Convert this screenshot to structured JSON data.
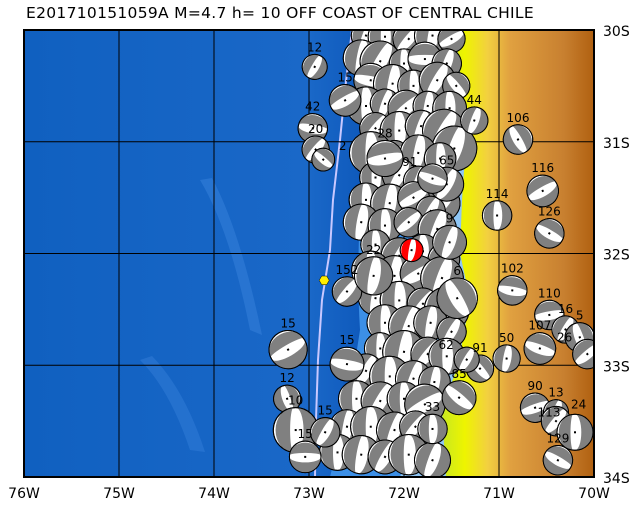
{
  "title": "E201710151059A M=4.7 h= 10 OFF COAST OF CENTRAL CHILE",
  "map": {
    "lon_range": [
      -76,
      -70
    ],
    "lat_range": [
      -34,
      -30
    ],
    "lon_ticks": [
      {
        "v": -76,
        "label": "76W"
      },
      {
        "v": -75,
        "label": "75W"
      },
      {
        "v": -74,
        "label": "74W"
      },
      {
        "v": -73,
        "label": "73W"
      },
      {
        "v": -72,
        "label": "72W"
      },
      {
        "v": -71,
        "label": "71W"
      },
      {
        "v": -70,
        "label": "70W"
      }
    ],
    "lat_ticks": [
      {
        "v": -30,
        "label": "30S"
      },
      {
        "v": -31,
        "label": "31S"
      },
      {
        "v": -32,
        "label": "32S"
      },
      {
        "v": -33,
        "label": "33S"
      },
      {
        "v": -34,
        "label": "34S"
      }
    ],
    "colors": {
      "ocean": "#1463c4",
      "shelf": "#3c8fe6",
      "coastal_water": "#8fc6f5",
      "lowland": "#e6f000",
      "land_mid": "#e0a040",
      "highland": "#b86a18",
      "trench": "#c8c8ff",
      "compression": "#808080",
      "target_event": "#ff0000",
      "epicenter_marker": "#ffee00"
    },
    "target_event": {
      "lon": -71.92,
      "lat": -31.97,
      "mag": 4.7,
      "depth": 10
    },
    "epicenter_marker": {
      "lon": -72.84,
      "lat": -32.24
    },
    "labeled_events": [
      [
        -72.94,
        -30.33,
        "12",
        4.8,
        30
      ],
      [
        -72.62,
        -30.63,
        "15",
        5.1,
        60
      ],
      [
        -72.96,
        -30.88,
        "42",
        5.0,
        100
      ],
      [
        -72.93,
        -31.07,
        "20",
        4.9,
        40
      ],
      [
        -72.85,
        -31.16,
        "2",
        4.7,
        130
      ],
      [
        -72.2,
        -31.15,
        "28",
        5.3,
        80
      ],
      [
        -71.26,
        -30.81,
        "44",
        4.9,
        20
      ],
      [
        -70.8,
        -30.98,
        "106",
        5.0,
        150
      ],
      [
        -70.54,
        -31.44,
        "116",
        5.1,
        60
      ],
      [
        -71.02,
        -31.66,
        "114",
        5.0,
        0
      ],
      [
        -70.47,
        -31.82,
        "126",
        5.0,
        120
      ],
      [
        -70.86,
        -32.33,
        "102",
        5.0,
        100
      ],
      [
        -70.47,
        -32.55,
        "110",
        5.0,
        80
      ],
      [
        -70.3,
        -32.68,
        "16",
        4.9,
        30
      ],
      [
        -70.15,
        -32.75,
        "5",
        5.0,
        160
      ],
      [
        -70.07,
        -32.9,
        "26",
        5.0,
        50
      ],
      [
        -70.57,
        -32.85,
        "107",
        5.1,
        110
      ],
      [
        -70.92,
        -32.94,
        "50",
        4.9,
        10
      ],
      [
        -71.2,
        -33.03,
        "91",
        4.9,
        140
      ],
      [
        -71.34,
        -32.95,
        "62",
        4.8,
        30
      ],
      [
        -71.42,
        -33.29,
        "85",
        5.2,
        130
      ],
      [
        -70.62,
        -33.38,
        "90",
        5.0,
        70
      ],
      [
        -70.4,
        -33.42,
        "13",
        4.8,
        20
      ],
      [
        -70.4,
        -33.5,
        "24",
        5.0,
        40
      ],
      [
        -70.2,
        -33.6,
        "113",
        5.3,
        0
      ],
      [
        -70.38,
        -33.85,
        "129",
        5.0,
        120
      ],
      [
        -73.22,
        -32.86,
        "15",
        5.4,
        60
      ],
      [
        -73.23,
        -33.3,
        "12",
        4.9,
        160
      ],
      [
        -73.14,
        -33.58,
        "10",
        5.7,
        0
      ],
      [
        -72.83,
        -33.6,
        "15",
        5.0,
        30
      ],
      [
        -73.04,
        -33.82,
        "15",
        5.1,
        90
      ],
      [
        -72.6,
        -32.99,
        "15",
        5.2,
        100
      ],
      [
        -72.6,
        -32.34,
        "152",
        5.0,
        40
      ],
      [
        -72.32,
        -32.2,
        "22",
        5.4,
        10
      ],
      [
        -71.44,
        -32.4,
        "6",
        5.5,
        150
      ],
      [
        -71.52,
        -31.9,
        "9",
        5.2,
        20
      ],
      [
        -71.55,
        -31.38,
        "65",
        5.2,
        30
      ],
      [
        -71.7,
        -31.33,
        "91",
        5.0,
        110
      ],
      [
        -71.7,
        -33.57,
        "33",
        5.0,
        0
      ]
    ],
    "events": [
      [
        -72.4,
        -30.05,
        5.0,
        20
      ],
      [
        -72.2,
        -30.06,
        5.2,
        0
      ],
      [
        -71.95,
        -30.08,
        5.1,
        40
      ],
      [
        -71.7,
        -30.05,
        5.3,
        10
      ],
      [
        -71.5,
        -30.08,
        4.9,
        60
      ],
      [
        -72.45,
        -30.25,
        5.3,
        10
      ],
      [
        -72.25,
        -30.28,
        5.5,
        30
      ],
      [
        -72.0,
        -30.3,
        5.0,
        0
      ],
      [
        -71.78,
        -30.26,
        5.2,
        90
      ],
      [
        -71.55,
        -30.3,
        5.0,
        20
      ],
      [
        -72.35,
        -30.45,
        5.2,
        100
      ],
      [
        -72.12,
        -30.48,
        5.4,
        10
      ],
      [
        -71.9,
        -30.5,
        5.1,
        0
      ],
      [
        -71.65,
        -30.45,
        5.3,
        30
      ],
      [
        -71.45,
        -30.5,
        4.9,
        140
      ],
      [
        -72.4,
        -30.68,
        5.4,
        0
      ],
      [
        -72.2,
        -30.66,
        5.0,
        20
      ],
      [
        -71.98,
        -30.7,
        5.3,
        50
      ],
      [
        -71.75,
        -30.68,
        5.0,
        10
      ],
      [
        -71.52,
        -30.7,
        5.2,
        0
      ],
      [
        -72.3,
        -30.88,
        5.1,
        40
      ],
      [
        -72.05,
        -30.9,
        5.4,
        0
      ],
      [
        -71.82,
        -30.86,
        5.1,
        20
      ],
      [
        -71.58,
        -30.9,
        5.6,
        30
      ],
      [
        -71.47,
        -31.06,
        5.7,
        20
      ],
      [
        -72.35,
        -31.1,
        5.6,
        0
      ],
      [
        -72.1,
        -31.12,
        5.0,
        50
      ],
      [
        -71.85,
        -31.1,
        5.3,
        10
      ],
      [
        -71.62,
        -31.15,
        5.1,
        0
      ],
      [
        -72.3,
        -31.32,
        5.1,
        0
      ],
      [
        -72.05,
        -31.3,
        5.2,
        30
      ],
      [
        -71.85,
        -31.35,
        5.0,
        20
      ],
      [
        -71.6,
        -31.55,
        5.3,
        40
      ],
      [
        -72.4,
        -31.52,
        5.2,
        0
      ],
      [
        -72.15,
        -31.55,
        5.4,
        10
      ],
      [
        -71.9,
        -31.5,
        5.1,
        60
      ],
      [
        -71.72,
        -31.62,
        5.0,
        30
      ],
      [
        -72.45,
        -31.72,
        5.3,
        10
      ],
      [
        -72.2,
        -31.75,
        5.2,
        0
      ],
      [
        -71.95,
        -31.72,
        5.0,
        50
      ],
      [
        -71.65,
        -31.78,
        5.4,
        20
      ],
      [
        -72.3,
        -31.92,
        5.0,
        0
      ],
      [
        -72.05,
        -32.02,
        5.3,
        30
      ],
      [
        -71.8,
        -31.98,
        5.2,
        0
      ],
      [
        -71.58,
        -32.05,
        5.1,
        40
      ],
      [
        -72.35,
        -32.15,
        5.4,
        0
      ],
      [
        -72.1,
        -32.2,
        5.5,
        10
      ],
      [
        -71.85,
        -32.18,
        5.3,
        60
      ],
      [
        -71.6,
        -32.22,
        5.6,
        20
      ],
      [
        -72.3,
        -32.4,
        5.2,
        10
      ],
      [
        -72.05,
        -32.42,
        5.4,
        0
      ],
      [
        -71.8,
        -32.45,
        5.1,
        40
      ],
      [
        -71.55,
        -32.5,
        5.7,
        0
      ],
      [
        -72.2,
        -32.62,
        5.3,
        0
      ],
      [
        -71.95,
        -32.65,
        5.5,
        20
      ],
      [
        -71.72,
        -32.62,
        5.2,
        10
      ],
      [
        -71.5,
        -32.7,
        5.0,
        30
      ],
      [
        -72.25,
        -32.85,
        5.1,
        0
      ],
      [
        -72.0,
        -32.88,
        5.6,
        10
      ],
      [
        -71.75,
        -32.9,
        5.2,
        40
      ],
      [
        -71.55,
        -32.92,
        5.3,
        0
      ],
      [
        -72.4,
        -33.05,
        5.2,
        30
      ],
      [
        -72.15,
        -33.1,
        5.5,
        0
      ],
      [
        -71.9,
        -33.12,
        5.3,
        20
      ],
      [
        -71.68,
        -33.15,
        5.1,
        10
      ],
      [
        -72.5,
        -33.3,
        5.3,
        0
      ],
      [
        -72.25,
        -33.32,
        5.4,
        30
      ],
      [
        -72.0,
        -33.3,
        5.2,
        0
      ],
      [
        -71.78,
        -33.35,
        5.5,
        60
      ],
      [
        -72.6,
        -33.55,
        5.2,
        10
      ],
      [
        -72.35,
        -33.55,
        5.5,
        0
      ],
      [
        -72.1,
        -33.58,
        5.3,
        20
      ],
      [
        -71.88,
        -33.55,
        5.1,
        40
      ],
      [
        -72.7,
        -33.78,
        5.3,
        0
      ],
      [
        -72.45,
        -33.8,
        5.4,
        10
      ],
      [
        -72.2,
        -33.82,
        5.2,
        30
      ],
      [
        -71.95,
        -33.8,
        5.5,
        0
      ],
      [
        -71.7,
        -33.85,
        5.3,
        20
      ]
    ]
  }
}
